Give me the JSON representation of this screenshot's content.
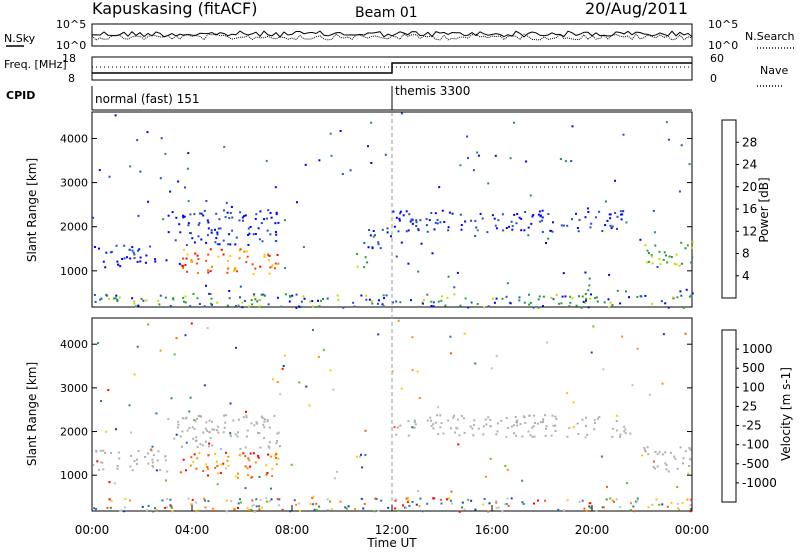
{
  "header": {
    "title": "Kapuskasing (fitACF)",
    "beam": "Beam 01",
    "date": "20/Aug/2011"
  },
  "noise_panel": {
    "left_label": "N.Sky",
    "right_label": "N.Search",
    "left_ticks": [
      "10^5",
      "10^0"
    ],
    "right_ticks": [
      "10^5",
      "10^0"
    ]
  },
  "freq_panel": {
    "left_label": "Freq. [MHz]",
    "right_label": "Nave",
    "left_ticks": [
      "18",
      "8"
    ],
    "right_ticks": [
      "60",
      "0"
    ]
  },
  "cpid_panel": {
    "label": "CPID",
    "modes": [
      {
        "name": "normal (fast) 151",
        "start_hour": 0
      },
      {
        "name": "themis 3300",
        "start_hour": 12
      }
    ]
  },
  "x_axis": {
    "label": "Time UT",
    "ticks": [
      "00:00",
      "04:00",
      "08:00",
      "12:00",
      "16:00",
      "20:00",
      "00:00"
    ]
  },
  "colors": {
    "power_scale": [
      "#0000ff",
      "#2050c0",
      "#2e8b57",
      "#22aa22",
      "#c8d800",
      "#ffc800",
      "#ff8000",
      "#ff4000",
      "#ff0000"
    ],
    "velocity_scale": [
      "#1a3fa8",
      "#2f6fb0",
      "#2e8b57",
      "#58c020",
      "#c0c0c0",
      "#c0c0c0",
      "#ffc800",
      "#ff9000",
      "#ff5a00",
      "#ff0000"
    ],
    "ground_scatter": "#b0b0b0"
  },
  "chart_data": [
    {
      "type": "heatmap",
      "name": "Power",
      "colorbar_label": "Power [dB]",
      "colorbar_ticks": [
        "28",
        "24",
        "20",
        "16",
        "12",
        "8",
        "4"
      ],
      "ylabel": "Slant Range [km]",
      "y_ticks": [
        "4000",
        "3000",
        "2000",
        "1000"
      ],
      "xlabel": "Time UT",
      "x_range_hours": [
        0,
        24
      ],
      "y_range_km": [
        180,
        4600
      ],
      "scatter_regions": [
        {
          "t0": 0.0,
          "t1": 1.5,
          "r0": 1100,
          "r1": 1600,
          "level": "low"
        },
        {
          "t0": 1.5,
          "t1": 3.0,
          "r0": 1200,
          "r1": 1600,
          "level": "low"
        },
        {
          "t0": 3.0,
          "t1": 7.5,
          "r0": 1600,
          "r1": 2400,
          "level": "low"
        },
        {
          "t0": 3.5,
          "t1": 7.5,
          "r0": 950,
          "r1": 1550,
          "level": "high"
        },
        {
          "t0": 10.5,
          "t1": 11.0,
          "r0": 1100,
          "r1": 1500,
          "level": "mid"
        },
        {
          "t0": 11.0,
          "t1": 12.0,
          "r0": 1500,
          "r1": 2000,
          "level": "low"
        },
        {
          "t0": 12.0,
          "t1": 21.5,
          "r0": 1900,
          "r1": 2400,
          "level": "low"
        },
        {
          "t0": 22.0,
          "t1": 24.0,
          "r0": 1100,
          "r1": 1700,
          "level": "mid"
        },
        {
          "t0": 0.0,
          "t1": 24.0,
          "r0": 180,
          "r1": 500,
          "level": "mixed"
        }
      ]
    },
    {
      "type": "heatmap",
      "name": "Velocity",
      "colorbar_label": "Velocity [m s-1]",
      "colorbar_ticks": [
        "1000",
        "500",
        "100",
        "25",
        "-25",
        "-100",
        "-500",
        "-1000"
      ],
      "ylabel": "Slant Range [km]",
      "y_ticks": [
        "4000",
        "3000",
        "2000",
        "1000"
      ],
      "xlabel": "Time UT",
      "x_range_hours": [
        0,
        24
      ],
      "y_range_km": [
        180,
        4600
      ],
      "scatter_regions": [
        {
          "t0": 0.0,
          "t1": 3.0,
          "r0": 1100,
          "r1": 1600,
          "level": "ground"
        },
        {
          "t0": 3.0,
          "t1": 7.5,
          "r0": 1600,
          "r1": 2400,
          "level": "ground"
        },
        {
          "t0": 3.5,
          "t1": 7.5,
          "r0": 950,
          "r1": 1550,
          "level": "orange"
        },
        {
          "t0": 10.5,
          "t1": 11.0,
          "r0": 1100,
          "r1": 1500,
          "level": "mixed"
        },
        {
          "t0": 12.0,
          "t1": 21.5,
          "r0": 1900,
          "r1": 2400,
          "level": "ground"
        },
        {
          "t0": 22.0,
          "t1": 24.0,
          "r0": 1100,
          "r1": 1700,
          "level": "ground"
        },
        {
          "t0": 0.0,
          "t1": 24.0,
          "r0": 180,
          "r1": 500,
          "level": "mixed"
        }
      ]
    }
  ]
}
